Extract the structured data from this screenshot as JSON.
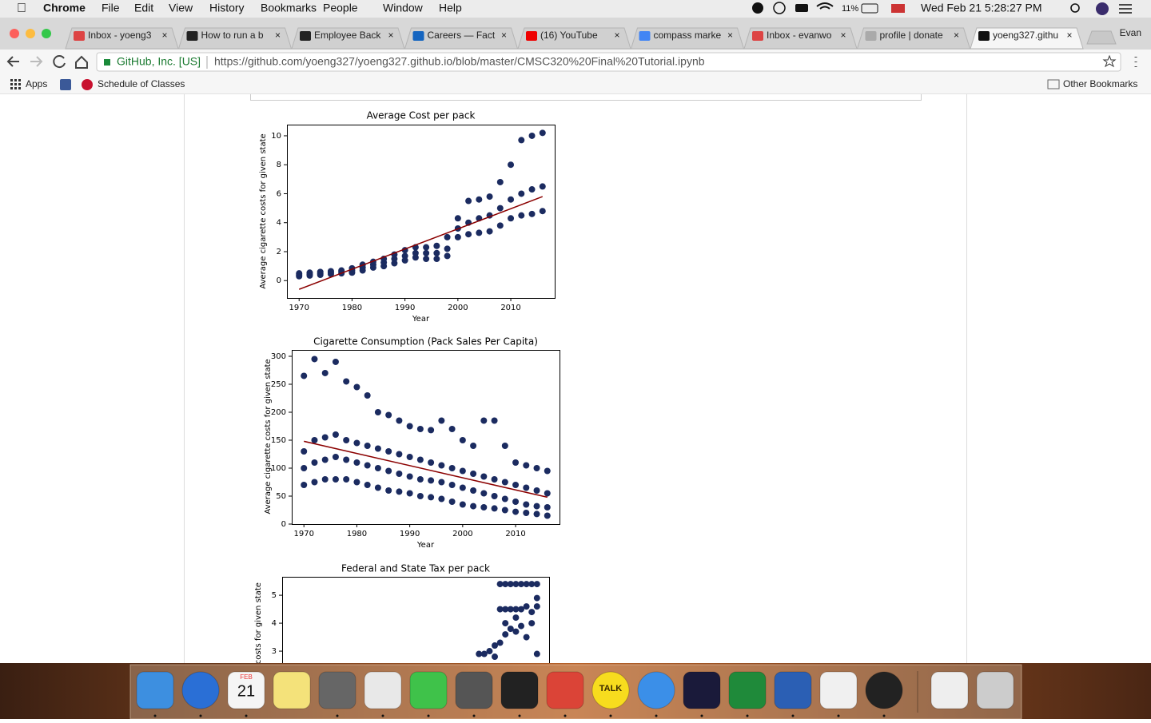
{
  "menu_bar": {
    "app": "Chrome",
    "items": [
      "File",
      "Edit",
      "View",
      "History",
      "Bookmarks",
      "People",
      "Window",
      "Help"
    ],
    "battery": "11%",
    "clock": "Wed Feb 21  5:28:27 PM"
  },
  "tabs": [
    "Inbox - yoeng3",
    "How to run a b",
    "Employee Back",
    "Careers — Fact",
    "(16) YouTube",
    "compass marke",
    "Inbox - evanwo",
    "profile | donate",
    "yoeng327.githu"
  ],
  "profile": "Evan",
  "address_bar": {
    "site": "GitHub, Inc. [US]",
    "url": "https://github.com/yoeng327/yoeng327.github.io/blob/master/CMSC320%20Final%20Tutorial.ipynb"
  },
  "bookmarks": [
    "Apps",
    "Schedule of Classes"
  ],
  "other_bookmarks": "Other Bookmarks",
  "dock": {
    "calendar_month": "FEB",
    "calendar_day": "21",
    "talk": "TALK"
  },
  "chart_data": [
    {
      "type": "scatter",
      "title": "Average Cost per pack",
      "xlabel": "Year",
      "ylabel": "Average cigarette costs for given state",
      "xlim": [
        1967.7,
        2018.3
      ],
      "ylim": [
        -1.2,
        10.77
      ],
      "xticks": [
        1970,
        1980,
        1990,
        2000,
        2010
      ],
      "yticks": [
        0,
        2,
        4,
        6,
        8,
        10
      ],
      "color": "#1b2b60",
      "fit_color": "#8b0000",
      "x": [
        1970,
        1970,
        1970,
        1972,
        1972,
        1972,
        1974,
        1974,
        1974,
        1976,
        1976,
        1976,
        1978,
        1978,
        1978,
        1980,
        1980,
        1980,
        1982,
        1982,
        1982,
        1984,
        1984,
        1984,
        1986,
        1986,
        1986,
        1988,
        1988,
        1988,
        1990,
        1990,
        1990,
        1992,
        1992,
        1992,
        1994,
        1994,
        1994,
        1996,
        1996,
        1996,
        1998,
        1998,
        1998,
        2000,
        2000,
        2000,
        2002,
        2002,
        2002,
        2004,
        2004,
        2004,
        2006,
        2006,
        2006,
        2008,
        2008,
        2008,
        2010,
        2010,
        2010,
        2012,
        2012,
        2012,
        2014,
        2014,
        2014,
        2016,
        2016,
        2016
      ],
      "y": [
        0.3,
        0.4,
        0.5,
        0.35,
        0.45,
        0.55,
        0.4,
        0.5,
        0.6,
        0.45,
        0.55,
        0.65,
        0.5,
        0.6,
        0.7,
        0.55,
        0.7,
        0.85,
        0.7,
        0.9,
        1.1,
        0.9,
        1.1,
        1.3,
        1.0,
        1.25,
        1.5,
        1.2,
        1.5,
        1.8,
        1.4,
        1.7,
        2.1,
        1.6,
        1.9,
        2.3,
        1.5,
        1.9,
        2.3,
        1.5,
        1.9,
        2.4,
        1.7,
        2.2,
        3.0,
        3.0,
        3.6,
        4.3,
        3.2,
        4.0,
        5.5,
        3.3,
        4.3,
        5.6,
        3.4,
        4.5,
        5.8,
        3.8,
        5.0,
        6.8,
        4.3,
        5.6,
        8.0,
        4.5,
        6.0,
        9.7,
        4.6,
        6.3,
        10.0,
        4.8,
        6.5,
        10.2
      ],
      "fit": {
        "x": [
          1970,
          2016
        ],
        "y": [
          -0.6,
          5.8
        ]
      }
    },
    {
      "type": "scatter",
      "title": "Cigarette Consumption (Pack Sales Per Capita)",
      "xlabel": "Year",
      "ylabel": "Average cigarette costs for given state",
      "xlim": [
        1967.7,
        2018.3
      ],
      "ylim": [
        0,
        311.4
      ],
      "xticks": [
        1970,
        1980,
        1990,
        2000,
        2010
      ],
      "yticks": [
        0,
        50,
        100,
        150,
        200,
        250,
        300
      ],
      "color": "#1b2b60",
      "fit_color": "#8b0000",
      "x": [
        1970,
        1970,
        1970,
        1970,
        1972,
        1972,
        1972,
        1972,
        1974,
        1974,
        1974,
        1974,
        1976,
        1976,
        1976,
        1976,
        1978,
        1978,
        1978,
        1978,
        1980,
        1980,
        1980,
        1980,
        1982,
        1982,
        1982,
        1982,
        1984,
        1984,
        1984,
        1984,
        1986,
        1986,
        1986,
        1986,
        1988,
        1988,
        1988,
        1988,
        1990,
        1990,
        1990,
        1990,
        1992,
        1992,
        1992,
        1992,
        1994,
        1994,
        1994,
        1994,
        1996,
        1996,
        1996,
        1996,
        1998,
        1998,
        1998,
        1998,
        2000,
        2000,
        2000,
        2000,
        2002,
        2002,
        2002,
        2002,
        2004,
        2004,
        2004,
        2004,
        2006,
        2006,
        2006,
        2006,
        2008,
        2008,
        2008,
        2008,
        2010,
        2010,
        2010,
        2010,
        2012,
        2012,
        2012,
        2012,
        2014,
        2014,
        2014,
        2014,
        2016,
        2016,
        2016,
        2016
      ],
      "y": [
        70,
        100,
        130,
        265,
        75,
        110,
        150,
        295,
        80,
        115,
        155,
        270,
        80,
        120,
        160,
        290,
        80,
        115,
        150,
        255,
        75,
        110,
        145,
        245,
        70,
        105,
        140,
        230,
        65,
        100,
        135,
        200,
        60,
        95,
        130,
        195,
        58,
        90,
        125,
        185,
        55,
        85,
        120,
        175,
        50,
        80,
        115,
        170,
        48,
        78,
        110,
        168,
        45,
        75,
        105,
        185,
        40,
        70,
        100,
        170,
        35,
        65,
        95,
        150,
        32,
        60,
        90,
        140,
        30,
        55,
        85,
        185,
        28,
        50,
        80,
        185,
        25,
        45,
        75,
        140,
        22,
        40,
        70,
        110,
        20,
        35,
        65,
        105,
        18,
        32,
        60,
        100,
        15,
        30,
        55,
        95
      ],
      "fit": {
        "x": [
          1970,
          2016
        ],
        "y": [
          148,
          48
        ]
      }
    },
    {
      "type": "scatter",
      "title": "Federal and State Tax per pack",
      "ylabel": "Average cigarette costs for given state",
      "xlim": [
        1967.7,
        2018.3
      ],
      "ylim": [
        -0.3,
        5.66
      ],
      "yticks": [
        3,
        4,
        5
      ],
      "color": "#1b2b60",
      "x": [
        2005,
        2006,
        2007,
        2008,
        2008,
        2009,
        2009,
        2009,
        2010,
        2010,
        2010,
        2010,
        2011,
        2011,
        2011,
        2012,
        2012,
        2012,
        2012,
        2013,
        2013,
        2013,
        2014,
        2014,
        2014,
        2015,
        2015,
        2015,
        2016,
        2016,
        2016,
        2016
      ],
      "y": [
        2.9,
        2.9,
        3.0,
        3.2,
        2.8,
        3.3,
        4.5,
        5.4,
        4.5,
        4.0,
        5.4,
        3.6,
        4.5,
        3.8,
        5.4,
        4.5,
        4.2,
        5.4,
        3.7,
        4.5,
        5.4,
        3.9,
        4.6,
        5.4,
        3.5,
        4.4,
        5.4,
        4.0,
        4.9,
        4.6,
        5.4,
        2.9
      ]
    }
  ]
}
